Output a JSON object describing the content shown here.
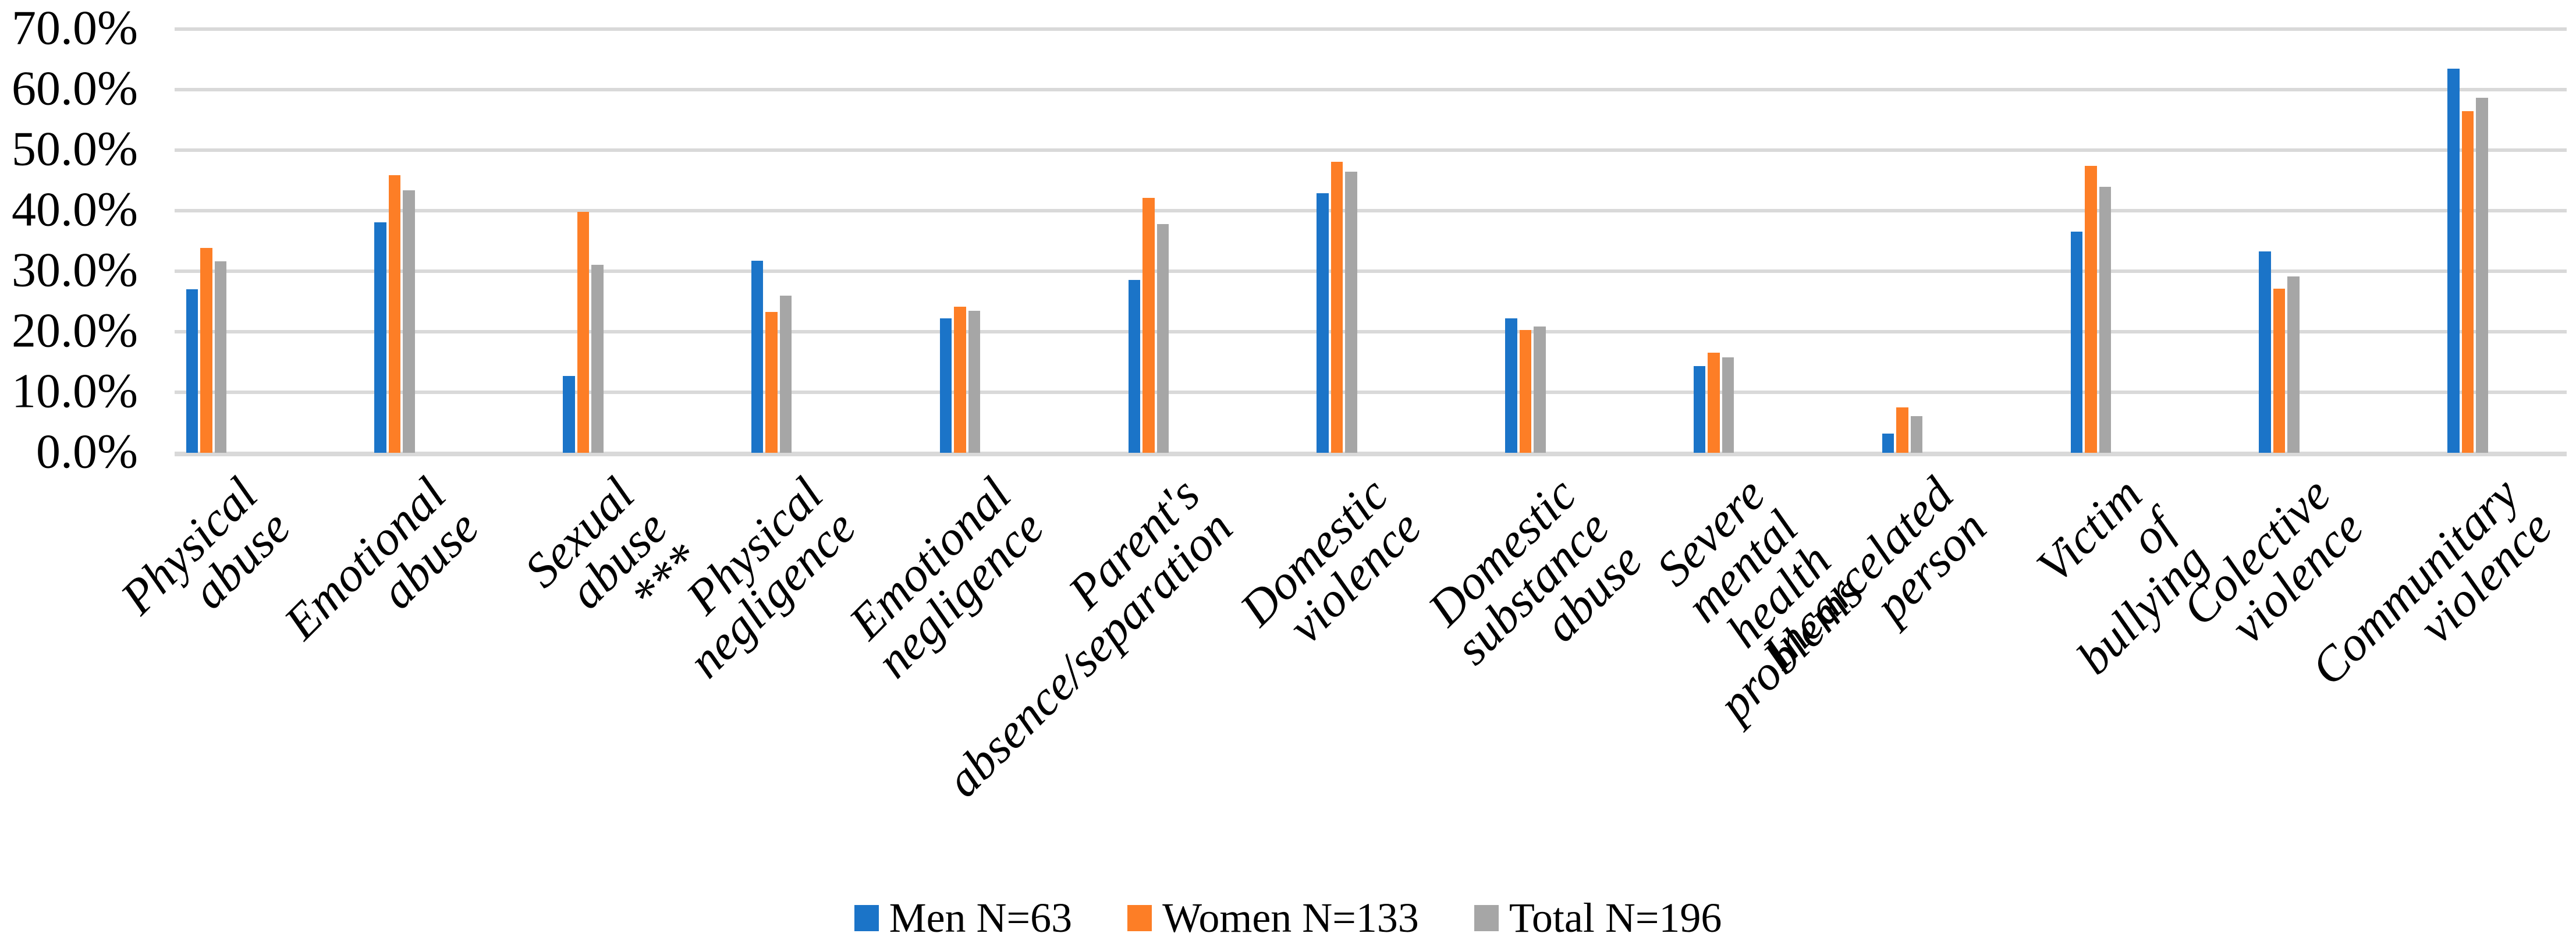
{
  "chart_data": {
    "type": "bar",
    "title": "",
    "xlabel": "",
    "ylabel": "",
    "categories": [
      {
        "label": "Physical abuse",
        "note": ""
      },
      {
        "label": "Emotional abuse",
        "note": ""
      },
      {
        "label": "Sexual abuse",
        "note": "***"
      },
      {
        "label": "Physical negligence",
        "note": ""
      },
      {
        "label": "Emotional negligence",
        "note": ""
      },
      {
        "label": "Parent's absence/separation",
        "note": ""
      },
      {
        "label": "Domestic violence",
        "note": ""
      },
      {
        "label": "Domestic substance abuse",
        "note": ""
      },
      {
        "label": "Severe mental health problems",
        "note": ""
      },
      {
        "label": "Incarcelated person",
        "note": ""
      },
      {
        "label": "Victim of bullying",
        "note": ""
      },
      {
        "label": "Colective violence",
        "note": ""
      },
      {
        "label": "Communitary violence",
        "note": ""
      }
    ],
    "series": [
      {
        "name": "Men N=63",
        "color": "#1B74C8",
        "values": [
          27.0,
          38.1,
          12.7,
          31.7,
          22.2,
          28.6,
          42.9,
          22.2,
          14.3,
          3.2,
          36.5,
          33.3,
          63.5
        ]
      },
      {
        "name": "Women N=133",
        "color": "#FD7E26",
        "values": [
          33.8,
          45.9,
          39.8,
          23.3,
          24.1,
          42.1,
          48.1,
          20.3,
          16.5,
          7.5,
          47.4,
          27.1,
          56.4
        ]
      },
      {
        "name": "Total N=196",
        "color": "#A6A6A6",
        "values": [
          31.6,
          43.4,
          31.1,
          26.0,
          23.5,
          37.8,
          46.4,
          20.9,
          15.8,
          6.1,
          43.9,
          29.1,
          58.7
        ]
      }
    ],
    "ylim": [
      0,
      70
    ],
    "ytick_step": 10,
    "ytick_labels": [
      "0.0%",
      "10.0%",
      "20.0%",
      "30.0%",
      "40.0%",
      "50.0%",
      "60.0%",
      "70.0%"
    ],
    "grid": "horizontal",
    "gridline_color": "#D9D9D9",
    "legend_position": "bottom"
  }
}
